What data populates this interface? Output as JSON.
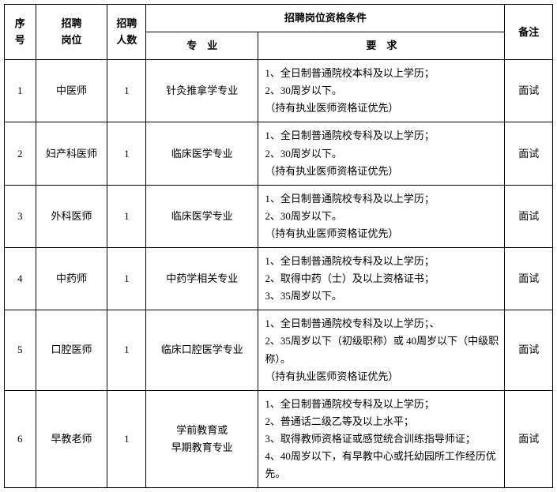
{
  "headers": {
    "seq": "序\n号",
    "position": "招聘\n岗位",
    "count": "招聘\n人数",
    "qual_group": "招聘岗位资格条件",
    "major": "专　业",
    "requirement": "要　求",
    "note": "备注"
  },
  "rows": [
    {
      "seq": "1",
      "position": "中医师",
      "count": "1",
      "major": "针灸推拿学专业",
      "requirement": "1、全日制普通院校本科及以上学历；\n2、30周岁以下。\n（持有执业医师资格证优先）",
      "note": "面试"
    },
    {
      "seq": "2",
      "position": "妇产科医师",
      "count": "1",
      "major": "临床医学专业",
      "requirement": "1、全日制普通院校专科及以上学历；\n2、30周岁以下。\n（持有执业医师资格证优先）",
      "note": "面试"
    },
    {
      "seq": "3",
      "position": "外科医师",
      "count": "1",
      "major": "临床医学专业",
      "requirement": "1、全日制普通院校专科及以上学历；\n2、30周岁以下。\n（持有执业医师资格证优先）",
      "note": "面试"
    },
    {
      "seq": "4",
      "position": "中药师",
      "count": "1",
      "major": "中药学相关专业",
      "requirement": "1、全日制普通院校专科及以上学历；\n2、取得中药（士）及以上资格证书；\n3、35周岁以下。",
      "note": "面试"
    },
    {
      "seq": "5",
      "position": "口腔医师",
      "count": "1",
      "major": "临床口腔医学专业",
      "requirement": "1、全日制普通院校专科及以上学历；、\n2、35周岁以下（初级职称）或 40周岁以下（中级职称）。\n（持有执业医师资格证优先）",
      "note": "面试"
    },
    {
      "seq": "6",
      "position": "早教老师",
      "count": "1",
      "major": "学前教育或\n早期教育专业",
      "requirement": "1、全日制普通院校专科及以上学历；\n2、普通话二级乙等及以上水平；\n3、取得教师资格证或感觉统合训练指导师证；\n4、40周岁以下，有早教中心或托幼园所工作经历优先。",
      "note": "面试"
    }
  ]
}
